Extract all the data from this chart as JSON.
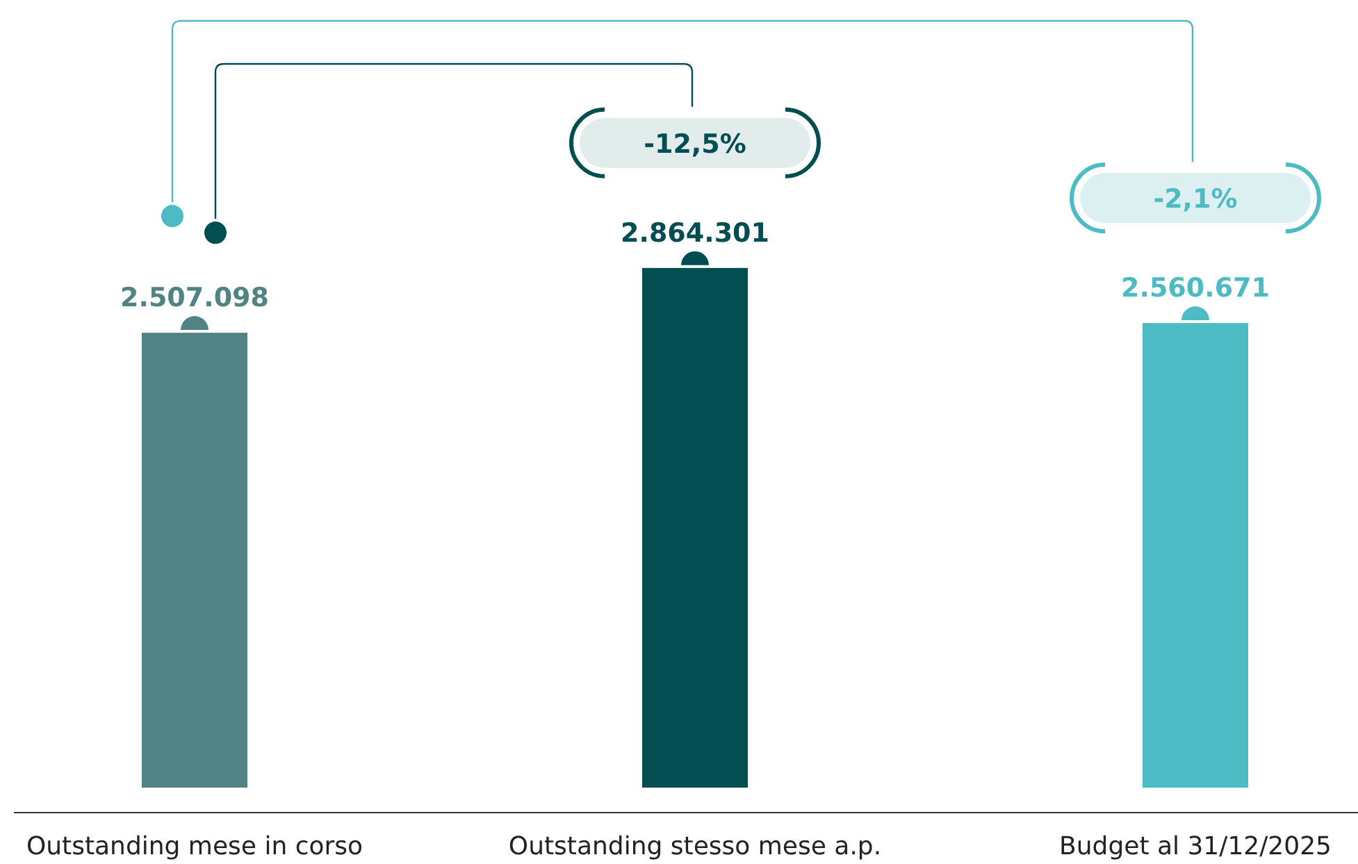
{
  "chart_data": {
    "type": "bar",
    "categories": [
      "Outstanding mese in corso",
      "Outstanding stesso mese a.p.",
      "Budget al 31/12/2025"
    ],
    "values": [
      2507098,
      2864301,
      2560671
    ],
    "colors": [
      "#4f8384",
      "#004d52",
      "#4dbbc3"
    ],
    "value_labels": [
      "2.507.098",
      "2.864.301",
      "2.560.671"
    ],
    "annotations": [
      "-12,5%",
      "-2,1%"
    ]
  }
}
